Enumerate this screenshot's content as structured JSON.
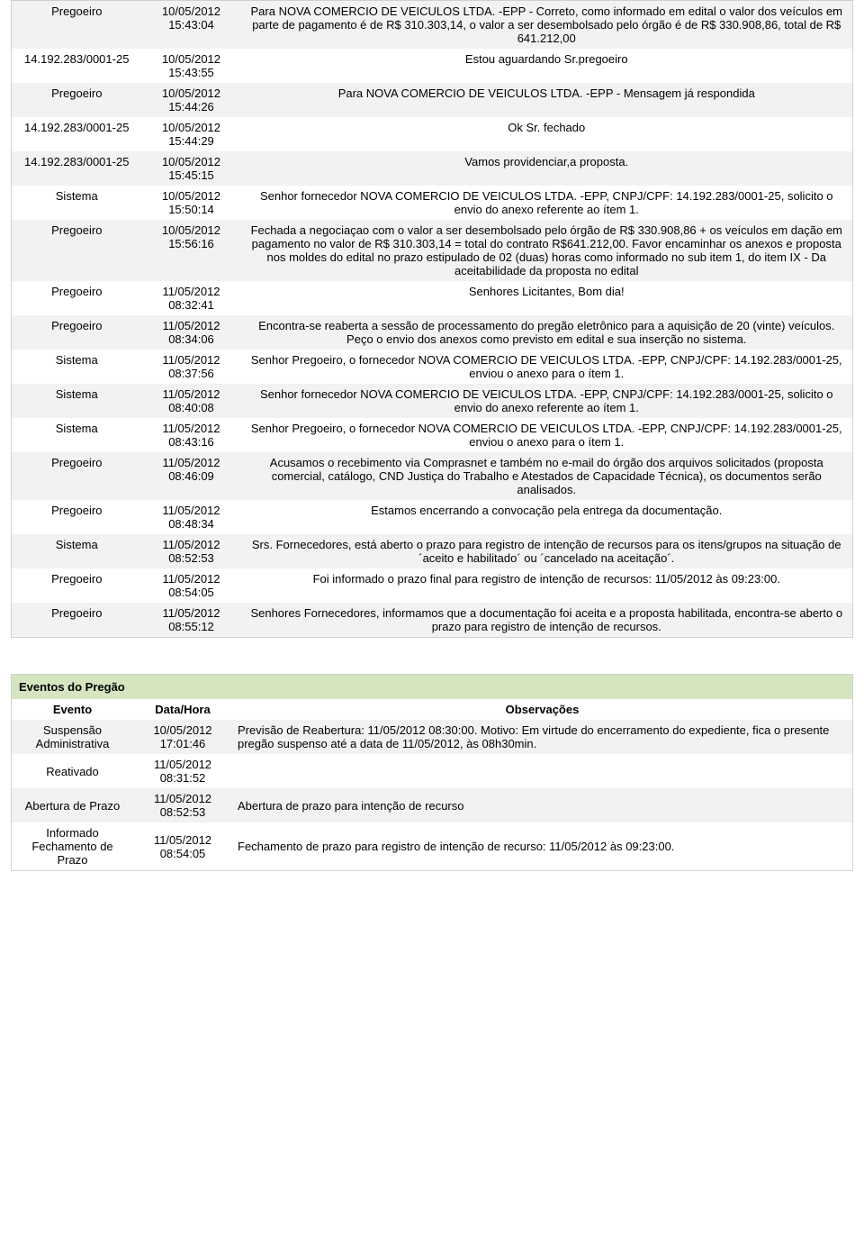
{
  "messages": {
    "rows": [
      {
        "sender": "Pregoeiro",
        "datetime": "10/05/2012 15:43:04",
        "text": "Para NOVA COMERCIO DE VEICULOS LTDA. -EPP - Correto, como informado em edital o valor dos veículos em parte de pagamento é de R$ 310.303,14, o valor a ser desembolsado pelo órgão é de R$ 330.908,86, total de R$ 641.212,00"
      },
      {
        "sender": "14.192.283/0001-25",
        "datetime": "10/05/2012 15:43:55",
        "text": "Estou aguardando Sr.pregoeiro"
      },
      {
        "sender": "Pregoeiro",
        "datetime": "10/05/2012 15:44:26",
        "text": "Para NOVA COMERCIO DE VEICULOS LTDA. -EPP - Mensagem já respondida"
      },
      {
        "sender": "14.192.283/0001-25",
        "datetime": "10/05/2012 15:44:29",
        "text": "Ok Sr. fechado"
      },
      {
        "sender": "14.192.283/0001-25",
        "datetime": "10/05/2012 15:45:15",
        "text": "Vamos providenciar,a proposta."
      },
      {
        "sender": "Sistema",
        "datetime": "10/05/2012 15:50:14",
        "text": "Senhor fornecedor NOVA COMERCIO DE VEICULOS LTDA. -EPP, CNPJ/CPF: 14.192.283/0001-25, solicito o envio do anexo referente ao ítem 1."
      },
      {
        "sender": "Pregoeiro",
        "datetime": "10/05/2012 15:56:16",
        "text": "Fechada a negociaçao com o valor a ser desembolsado pelo órgão de R$ 330.908,86 + os veículos em dação em pagamento no valor de R$ 310.303,14 = total do contrato R$641.212,00. Favor encaminhar os anexos e proposta nos moldes do edital no prazo estipulado de 02 (duas) horas como informado no sub item 1, do item IX - Da aceitabilidade da proposta no edital"
      },
      {
        "sender": "Pregoeiro",
        "datetime": "11/05/2012 08:32:41",
        "text": "Senhores Licitantes, Bom dia!"
      },
      {
        "sender": "Pregoeiro",
        "datetime": "11/05/2012 08:34:06",
        "text": "Encontra-se reaberta a sessão de processamento do pregão eletrônico para a aquisição de 20 (vinte) veículos. Peço o envio dos anexos como previsto em edital e sua inserção no sistema."
      },
      {
        "sender": "Sistema",
        "datetime": "11/05/2012 08:37:56",
        "text": "Senhor Pregoeiro, o fornecedor NOVA COMERCIO DE VEICULOS LTDA. -EPP, CNPJ/CPF: 14.192.283/0001-25, enviou o anexo para o ítem 1."
      },
      {
        "sender": "Sistema",
        "datetime": "11/05/2012 08:40:08",
        "text": "Senhor fornecedor NOVA COMERCIO DE VEICULOS LTDA. -EPP, CNPJ/CPF: 14.192.283/0001-25, solicito o envio do anexo referente ao ítem 1."
      },
      {
        "sender": "Sistema",
        "datetime": "11/05/2012 08:43:16",
        "text": "Senhor Pregoeiro, o fornecedor NOVA COMERCIO DE VEICULOS LTDA. -EPP, CNPJ/CPF: 14.192.283/0001-25, enviou o anexo para o ítem 1."
      },
      {
        "sender": "Pregoeiro",
        "datetime": "11/05/2012 08:46:09",
        "text": "Acusamos o recebimento via Comprasnet e também no e-mail do órgão dos arquivos solicitados (proposta comercial, catálogo, CND Justiça do Trabalho e Atestados de Capacidade Técnica), os documentos serão analisados."
      },
      {
        "sender": "Pregoeiro",
        "datetime": "11/05/2012 08:48:34",
        "text": "Estamos encerrando a convocação pela entrega da documentação."
      },
      {
        "sender": "Sistema",
        "datetime": "11/05/2012 08:52:53",
        "text": "Srs. Fornecedores, está aberto o prazo para registro de intenção de recursos para os itens/grupos na situação de ´aceito e habilitado´ ou ´cancelado na aceitação´."
      },
      {
        "sender": "Pregoeiro",
        "datetime": "11/05/2012 08:54:05",
        "text": "Foi informado o prazo final para registro de intenção de recursos: 11/05/2012 às 09:23:00."
      },
      {
        "sender": "Pregoeiro",
        "datetime": "11/05/2012 08:55:12",
        "text": "Senhores Fornecedores, informamos que a documentação foi aceita e a proposta habilitada, encontra-se aberto o prazo para registro de intenção de recursos."
      }
    ]
  },
  "events": {
    "title": "Eventos do Pregão",
    "headers": {
      "evento": "Evento",
      "datahora": "Data/Hora",
      "obs": "Observações"
    },
    "rows": [
      {
        "evento": "Suspensão Administrativa",
        "datahora": "10/05/2012 17:01:46",
        "obs": "Previsão de Reabertura: 11/05/2012 08:30:00.  Motivo: Em virtude do encerramento do expediente, fica o presente pregão suspenso até a data de 11/05/2012, às 08h30min."
      },
      {
        "evento": "Reativado",
        "datahora": "11/05/2012 08:31:52",
        "obs": ""
      },
      {
        "evento": "Abertura de Prazo",
        "datahora": "11/05/2012 08:52:53",
        "obs": "Abertura de prazo para intenção de recurso"
      },
      {
        "evento": "Informado Fechamento de Prazo",
        "datahora": "11/05/2012 08:54:05",
        "obs": "Fechamento de prazo para registro de intenção de recurso: 11/05/2012 às 09:23:00."
      }
    ]
  }
}
